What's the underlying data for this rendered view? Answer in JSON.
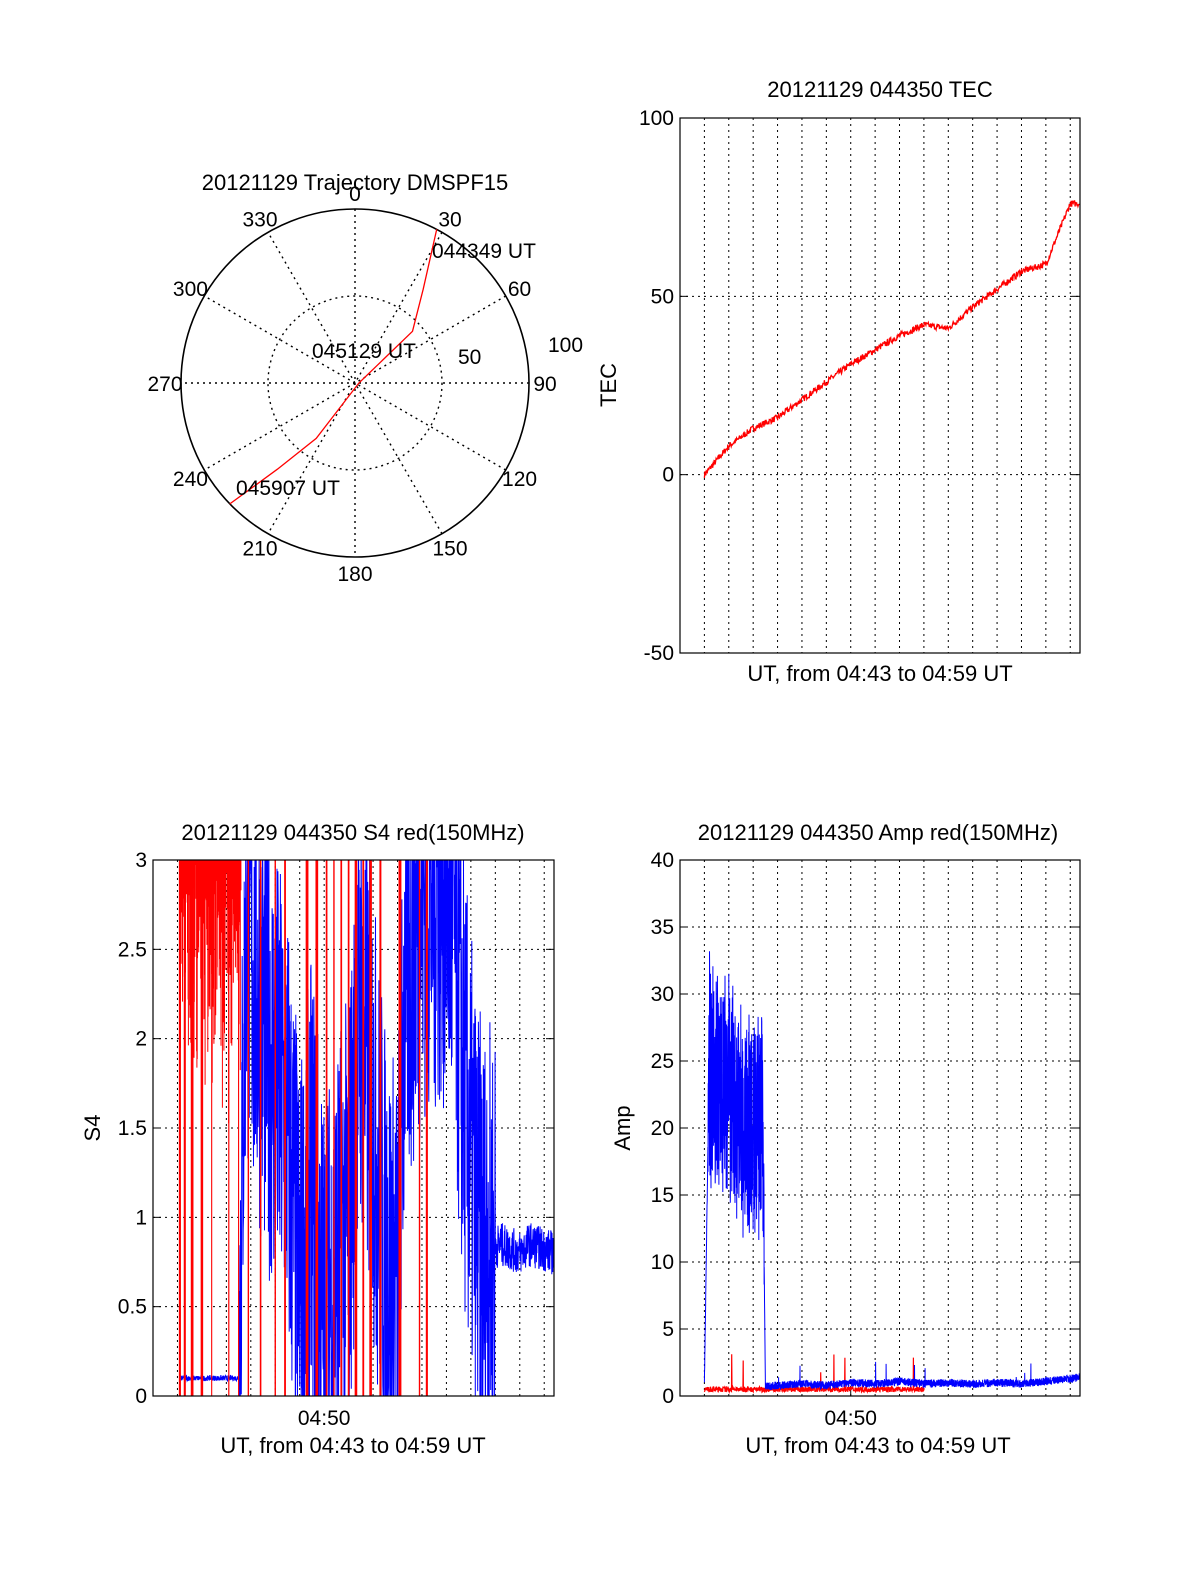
{
  "colors": {
    "red": "#ff0000",
    "blue": "#0000ff"
  },
  "chart_data": [
    {
      "id": "traj",
      "type": "polar",
      "title": "20121129 Trajectory DMSPF15",
      "azimuth_labels": [
        "0",
        "30",
        "60",
        "90",
        "120",
        "150",
        "180",
        "210",
        "240",
        "270",
        "300",
        "330"
      ],
      "radial_labels": [
        "50",
        "100"
      ],
      "annotations": [
        "044349 UT",
        "045129 UT",
        "045907 UT"
      ],
      "series": [
        {
          "color": "red",
          "points_az_el": [
            [
              28,
              0
            ],
            [
              36,
              30
            ],
            [
              48,
              50
            ],
            [
              90,
              88
            ],
            [
              215,
              55
            ],
            [
              222,
              30
            ],
            [
              226,
              0
            ]
          ]
        }
      ]
    },
    {
      "id": "tec",
      "type": "line",
      "title": "20121129 044350 TEC",
      "ylabel": "TEC",
      "xlabel": "UT, from 04:43 to 04:59 UT",
      "ylim": [
        -50,
        100
      ],
      "yticks": [
        "-50",
        "0",
        "50",
        "100"
      ],
      "xlim": [
        43.0,
        59.4
      ],
      "xgrid_minutes": 16,
      "xtick_labels": [],
      "series": [
        {
          "color": "red",
          "x": [
            44.0,
            45.0,
            46.0,
            47.0,
            48.0,
            49.0,
            50.0,
            51.0,
            52.0,
            53.0,
            54.0,
            55.0,
            56.0,
            57.0,
            58.0,
            59.0,
            59.4
          ],
          "y": [
            0,
            8,
            13,
            16,
            21,
            26,
            31,
            35,
            39,
            42,
            41,
            47,
            52,
            57,
            59,
            76,
            76
          ]
        }
      ]
    },
    {
      "id": "s4",
      "type": "line",
      "title": "20121129 044350 S4 red(150MHz)",
      "ylabel": "S4",
      "xlabel": "UT, from 04:43 to 04:59 UT",
      "ylim": [
        0,
        3
      ],
      "yticks": [
        "0",
        "0.5",
        "1",
        "1.5",
        "2",
        "2.5",
        "3"
      ],
      "xlim": [
        43.0,
        59.4
      ],
      "xgrid_minutes": 16,
      "xtick_labels": [
        {
          "x": 50,
          "label": "04:50"
        }
      ],
      "series": [
        {
          "color": "red",
          "name": "",
          "style": "spikes",
          "x": [
            44.1,
            44.3,
            44.6,
            45.0,
            45.4,
            46.1,
            46.5,
            46.9,
            47.4,
            48.0,
            48.4,
            49.3,
            49.7,
            50.1,
            50.4,
            50.7,
            51.0,
            51.3,
            51.6,
            51.9,
            52.3,
            53.1,
            53.9,
            54.2
          ],
          "y": [
            3,
            3,
            3,
            3,
            3,
            3,
            3,
            3,
            3,
            3,
            3,
            3,
            3,
            3,
            3,
            3,
            3,
            3,
            3,
            3,
            3,
            3,
            3,
            3
          ]
        },
        {
          "color": "blue",
          "name": "",
          "x": [
            44.1,
            45.5,
            46.5,
            46.8,
            47.5,
            48.5,
            49.0,
            49.5,
            50.0,
            50.5,
            51.0,
            51.5,
            52.0,
            52.5,
            53.0,
            53.3,
            54.0,
            55.0,
            55.3,
            55.8,
            56.3,
            56.6,
            57.2,
            58.0,
            58.4,
            59.4
          ],
          "y": [
            0.1,
            0.1,
            0.1,
            2.6,
            2.1,
            1.5,
            0.6,
            1.2,
            0.4,
            0.7,
            1.0,
            2.2,
            1.6,
            0.8,
            0.6,
            2.3,
            2.8,
            2.9,
            2.6,
            1.6,
            0.9,
            0.8,
            0.85,
            0.8,
            0.85,
            0.8
          ]
        }
      ]
    },
    {
      "id": "amp",
      "type": "line",
      "title": "20121129 044350 Amp red(150MHz)",
      "ylabel": "Amp",
      "xlabel": "UT, from 04:43 to 04:59 UT",
      "ylim": [
        0,
        40
      ],
      "yticks": [
        "0",
        "5",
        "10",
        "15",
        "20",
        "25",
        "30",
        "35",
        "40"
      ],
      "xlim": [
        43.0,
        59.4
      ],
      "xgrid_minutes": 16,
      "xtick_labels": [
        {
          "x": 50,
          "label": "04:50"
        }
      ],
      "series": [
        {
          "color": "blue",
          "name": "",
          "x": [
            44.0,
            44.2,
            44.5,
            44.8,
            45.1,
            45.4,
            45.7,
            46.0,
            46.4,
            46.5,
            47.0,
            48.0,
            49.0,
            50.0,
            51.0,
            52.0,
            53.0,
            54.0,
            55.0,
            56.0,
            57.0,
            58.0,
            59.0,
            59.4
          ],
          "y": [
            0.5,
            25,
            23,
            24,
            22,
            21,
            20,
            19,
            20,
            0.4,
            0.5,
            0.6,
            0.5,
            0.7,
            0.6,
            0.8,
            0.6,
            0.7,
            0.6,
            0.7,
            0.6,
            0.8,
            1.0,
            1.1
          ]
        },
        {
          "color": "red",
          "name": "",
          "x": [
            44.0,
            46.4,
            47.0,
            53.0
          ],
          "y": [
            0.3,
            0.3,
            0.3,
            0.3
          ]
        }
      ]
    }
  ]
}
